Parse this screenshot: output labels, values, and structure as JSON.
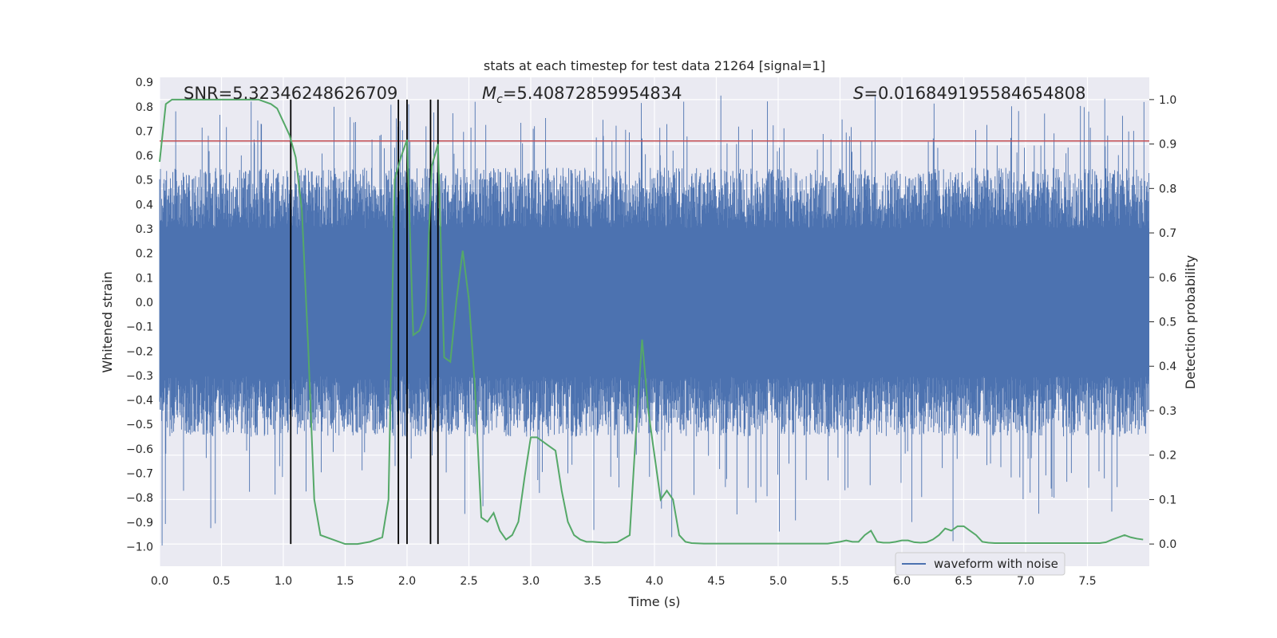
{
  "chart_data": {
    "type": "line",
    "title": "stats at each timestep for test data 21264 [signal=1]",
    "xlabel": "Time (s)",
    "ylabel_left": "Whitened strain",
    "ylabel_right": "Detection probability",
    "xlim": [
      0.0,
      8.0
    ],
    "ylim_left": [
      -1.08,
      0.92
    ],
    "ylim_right": [
      -0.05,
      1.05
    ],
    "grid": true,
    "legend_position": "lower-right",
    "x_ticks": [
      "0.0",
      "0.5",
      "1.0",
      "1.5",
      "2.0",
      "2.5",
      "3.0",
      "3.5",
      "4.0",
      "4.5",
      "5.0",
      "5.5",
      "6.0",
      "6.5",
      "7.0",
      "7.5"
    ],
    "y_left_ticks": [
      "0.9",
      "0.8",
      "0.7",
      "0.6",
      "0.5",
      "0.4",
      "0.3",
      "0.2",
      "0.1",
      "0.0",
      "-0.1",
      "-0.2",
      "-0.3",
      "-0.4",
      "-0.5",
      "-0.6",
      "-0.7",
      "-0.8",
      "-0.9",
      "-1.0"
    ],
    "y_right_ticks": [
      "1.0",
      "0.9",
      "0.8",
      "0.7",
      "0.6",
      "0.5",
      "0.4",
      "0.3",
      "0.2",
      "0.1",
      "0.0"
    ],
    "annotations": {
      "snr": "SNR=5.32346248626709",
      "mc_symbol": "M",
      "mc_subscript": "c",
      "mc_value": "=5.40872859954834",
      "s_symbol": "S",
      "s_value": "=0.016849195584654808"
    },
    "series": [
      {
        "name": "waveform with noise",
        "axis": "left",
        "color": "#4c72b0",
        "kind": "noisy waveform",
        "x_range": [
          0.0,
          8.0
        ],
        "typical_envelope": [
          -0.55,
          0.55
        ],
        "peak_range": [
          -1.0,
          0.85
        ]
      },
      {
        "axis": "right",
        "color": "#55a868",
        "x": [
          0.0,
          0.05,
          0.1,
          0.2,
          0.3,
          0.4,
          0.5,
          0.6,
          0.7,
          0.8,
          0.9,
          0.95,
          1.0,
          1.05,
          1.1,
          1.15,
          1.2,
          1.25,
          1.3,
          1.4,
          1.5,
          1.6,
          1.7,
          1.8,
          1.85,
          1.9,
          1.95,
          2.0,
          2.05,
          2.1,
          2.15,
          2.2,
          2.25,
          2.3,
          2.35,
          2.4,
          2.45,
          2.5,
          2.55,
          2.6,
          2.65,
          2.7,
          2.75,
          2.8,
          2.85,
          2.9,
          2.95,
          3.0,
          3.05,
          3.1,
          3.15,
          3.2,
          3.25,
          3.3,
          3.35,
          3.4,
          3.45,
          3.5,
          3.6,
          3.7,
          3.8,
          3.85,
          3.9,
          3.95,
          4.0,
          4.05,
          4.1,
          4.15,
          4.2,
          4.25,
          4.3,
          4.4,
          4.6,
          4.8,
          5.0,
          5.2,
          5.4,
          5.5,
          5.55,
          5.6,
          5.65,
          5.7,
          5.75,
          5.8,
          5.85,
          5.9,
          5.95,
          6.0,
          6.05,
          6.1,
          6.15,
          6.2,
          6.25,
          6.3,
          6.35,
          6.4,
          6.45,
          6.5,
          6.55,
          6.6,
          6.65,
          6.7,
          6.75,
          6.8,
          7.0,
          7.2,
          7.4,
          7.5,
          7.6,
          7.65,
          7.7,
          7.75,
          7.8,
          7.85,
          7.9,
          7.95
        ],
        "y": [
          0.86,
          0.99,
          1.0,
          1.0,
          1.0,
          1.0,
          1.0,
          1.0,
          1.0,
          1.0,
          0.99,
          0.98,
          0.95,
          0.92,
          0.87,
          0.75,
          0.45,
          0.1,
          0.02,
          0.01,
          0.0,
          0.0,
          0.005,
          0.015,
          0.1,
          0.82,
          0.87,
          0.91,
          0.47,
          0.48,
          0.52,
          0.85,
          0.9,
          0.42,
          0.41,
          0.55,
          0.66,
          0.55,
          0.35,
          0.06,
          0.05,
          0.07,
          0.03,
          0.01,
          0.02,
          0.05,
          0.15,
          0.24,
          0.24,
          0.23,
          0.22,
          0.21,
          0.12,
          0.05,
          0.02,
          0.01,
          0.005,
          0.005,
          0.003,
          0.004,
          0.02,
          0.25,
          0.46,
          0.3,
          0.2,
          0.1,
          0.12,
          0.1,
          0.02,
          0.005,
          0.002,
          0.001,
          0.001,
          0.001,
          0.001,
          0.001,
          0.001,
          0.005,
          0.008,
          0.005,
          0.005,
          0.02,
          0.03,
          0.005,
          0.003,
          0.003,
          0.005,
          0.008,
          0.008,
          0.004,
          0.003,
          0.004,
          0.01,
          0.02,
          0.035,
          0.03,
          0.04,
          0.04,
          0.03,
          0.02,
          0.005,
          0.003,
          0.002,
          0.002,
          0.002,
          0.002,
          0.002,
          0.002,
          0.002,
          0.004,
          0.01,
          0.015,
          0.02,
          0.015,
          0.012,
          0.01
        ]
      }
    ],
    "threshold_line": {
      "axis": "left",
      "y": 0.66,
      "color": "#c44e52"
    },
    "vertical_lines": {
      "x": [
        1.06,
        1.93,
        2.0,
        2.19,
        2.25
      ],
      "color": "#000000"
    }
  }
}
